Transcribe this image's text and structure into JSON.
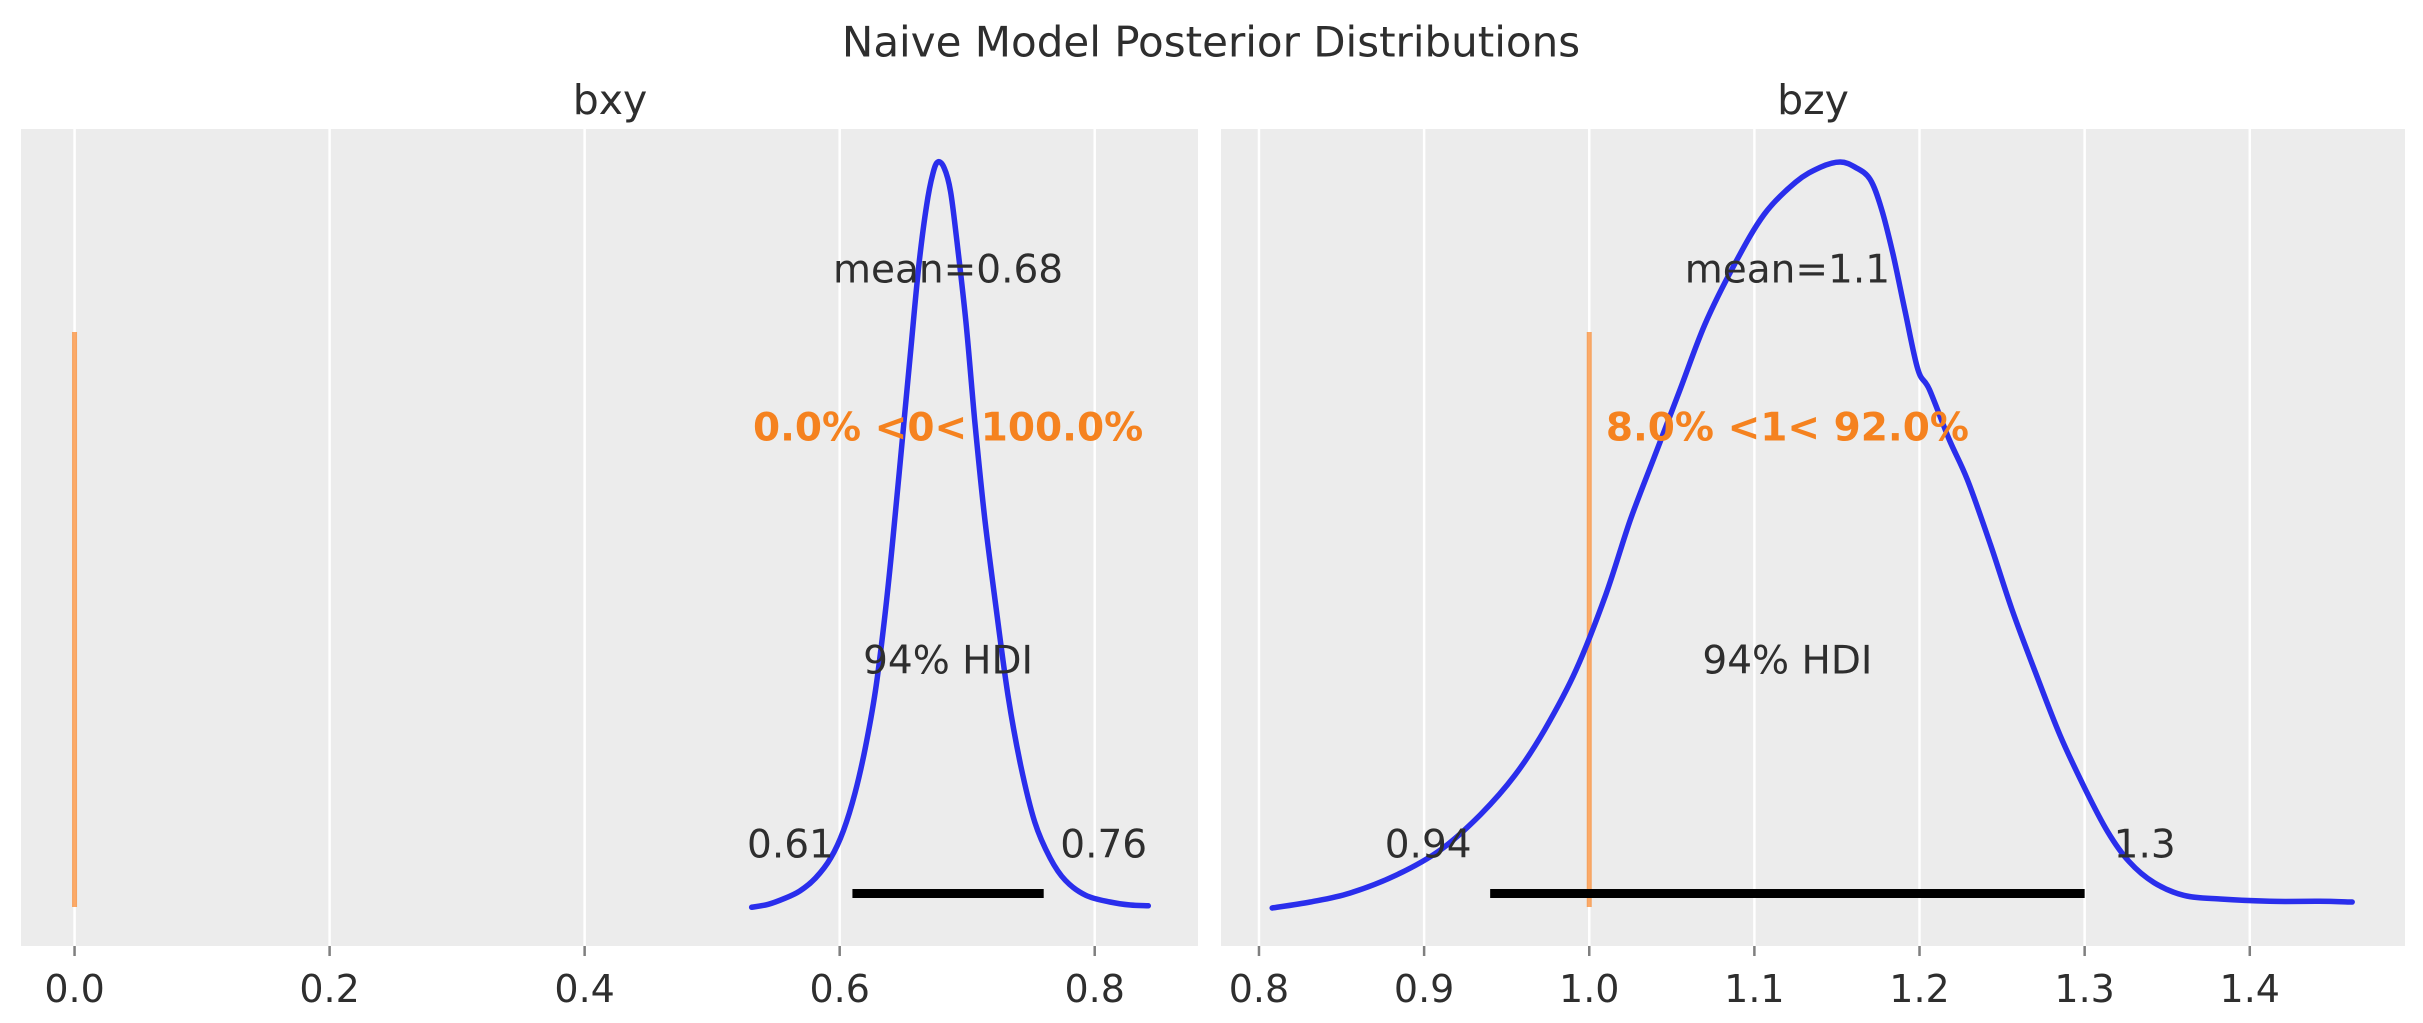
{
  "figure": {
    "title": "Naive Model Posterior Distributions",
    "background_color": "#ffffff",
    "panel_background_color": "#ececec",
    "grid_color": "#ffffff",
    "curve_color": "#2a2eec",
    "reference_line_color": "#fa7c17",
    "orange_text_color": "#f5821f",
    "hdi_bar_color": "#000000",
    "text_color": "#2e2e2e"
  },
  "chart_data": [
    {
      "type": "area",
      "title": "bxy",
      "xlabel": "",
      "ylabel": "",
      "xlim": [
        -0.042,
        0.881
      ],
      "grid": true,
      "x_tick_labels": [
        "0.0",
        "0.2",
        "0.4",
        "0.6",
        "0.8"
      ],
      "x_tick_values": [
        0.0,
        0.2,
        0.4,
        0.6,
        0.8
      ],
      "mean": 0.68,
      "mean_label": "mean=0.68",
      "hdi_label": "94% HDI",
      "hdi": [
        0.61,
        0.76
      ],
      "hdi_lo_label": "0.61",
      "hdi_hi_label": "0.76",
      "ref_value": 0,
      "ref_text": "0.0% <0< 100.0%",
      "kde": {
        "x": [
          0.531,
          0.544,
          0.557,
          0.569,
          0.581,
          0.593,
          0.603,
          0.612,
          0.62,
          0.628,
          0.635,
          0.642,
          0.649,
          0.656,
          0.662,
          0.668,
          0.673,
          0.677,
          0.682,
          0.687,
          0.692,
          0.699,
          0.706,
          0.714,
          0.723,
          0.732,
          0.742,
          0.753,
          0.765,
          0.777,
          0.793,
          0.812,
          0.828,
          0.842
        ],
        "y": [
          0.001,
          0.005,
          0.013,
          0.023,
          0.04,
          0.067,
          0.104,
          0.154,
          0.214,
          0.291,
          0.385,
          0.499,
          0.626,
          0.753,
          0.86,
          0.94,
          0.984,
          1.0,
          0.992,
          0.96,
          0.893,
          0.786,
          0.652,
          0.519,
          0.398,
          0.285,
          0.191,
          0.115,
          0.067,
          0.037,
          0.017,
          0.008,
          0.004,
          0.003
        ]
      }
    },
    {
      "type": "area",
      "title": "bzy",
      "xlabel": "",
      "ylabel": "",
      "xlim": [
        0.777,
        1.494
      ],
      "grid": true,
      "x_tick_labels": [
        "0.8",
        "0.9",
        "1.0",
        "1.1",
        "1.2",
        "1.3",
        "1.4"
      ],
      "x_tick_values": [
        0.8,
        0.9,
        1.0,
        1.1,
        1.2,
        1.3,
        1.4
      ],
      "mean": 1.1,
      "mean_label": "mean=1.1",
      "hdi_label": "94% HDI",
      "hdi": [
        0.94,
        1.3
      ],
      "hdi_lo_label": "0.94",
      "hdi_hi_label": "1.3",
      "ref_value": 1,
      "ref_text": "8.0% <1< 92.0%",
      "kde": {
        "x": [
          0.808,
          0.831,
          0.855,
          0.883,
          0.91,
          0.934,
          0.955,
          0.973,
          0.992,
          1.01,
          1.025,
          1.04,
          1.055,
          1.07,
          1.088,
          1.106,
          1.125,
          1.14,
          1.152,
          1.161,
          1.17,
          1.177,
          1.184,
          1.191,
          1.199,
          1.206,
          1.218,
          1.229,
          1.243,
          1.256,
          1.27,
          1.285,
          1.3,
          1.314,
          1.327,
          1.342,
          1.36,
          1.382,
          1.412,
          1.442,
          1.462
        ],
        "y": [
          0.0,
          0.008,
          0.02,
          0.044,
          0.078,
          0.125,
          0.178,
          0.239,
          0.319,
          0.42,
          0.521,
          0.608,
          0.695,
          0.782,
          0.863,
          0.93,
          0.973,
          0.993,
          1.0,
          0.993,
          0.977,
          0.937,
          0.876,
          0.803,
          0.722,
          0.695,
          0.628,
          0.574,
          0.487,
          0.4,
          0.317,
          0.232,
          0.161,
          0.102,
          0.062,
          0.034,
          0.017,
          0.012,
          0.009,
          0.009,
          0.008
        ]
      }
    }
  ]
}
